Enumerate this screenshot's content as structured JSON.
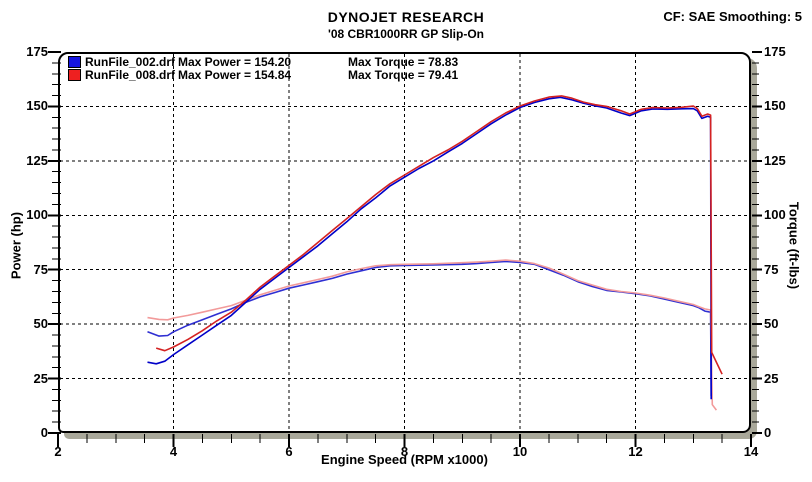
{
  "header": {
    "title": "DYNOJET RESEARCH",
    "subtitle": "'08 CBR1000RR GP Slip-On",
    "correction_info": "CF: SAE  Smoothing: 5"
  },
  "legend": {
    "rows": [
      {
        "file": "RunFile_002.drf",
        "max_power": "Max Power = 154.20",
        "max_torque": "Max Torque = 78.83",
        "swatch_color": "#1515e0"
      },
      {
        "file": "RunFile_008.drf",
        "max_power": "Max Power = 154.84",
        "max_torque": "Max Torque = 79.41",
        "swatch_color": "#ee2020"
      }
    ]
  },
  "chart_data": {
    "type": "line",
    "title": "DYNOJET RESEARCH",
    "subtitle": "'08 CBR1000RR GP Slip-On",
    "xlabel": "Engine Speed (RPM x1000)",
    "ylabel_left": "Power (hp)",
    "ylabel_right": "Torque (ft-lbs)",
    "xlim": [
      2,
      14
    ],
    "ylim": [
      0,
      175
    ],
    "x_major_ticks": [
      2,
      4,
      6,
      8,
      10,
      12,
      14
    ],
    "x_minor_step": 0.5,
    "y_major_ticks": [
      0,
      25,
      50,
      75,
      100,
      125,
      150,
      175
    ],
    "y_minor_step": 5,
    "grid": "dashed-at-major-ticks",
    "legend_position": "top-left-inside",
    "series": [
      {
        "name": "RunFile_002.drf Torque",
        "unit": "ft-lbs",
        "color": "#2f2fd2",
        "max": 78.83,
        "points": [
          [
            3.55,
            46.5
          ],
          [
            3.75,
            44.5
          ],
          [
            3.9,
            44.8
          ],
          [
            4,
            46.5
          ],
          [
            4.25,
            49.5
          ],
          [
            4.5,
            52
          ],
          [
            4.75,
            54.5
          ],
          [
            5,
            57
          ],
          [
            5.25,
            60
          ],
          [
            5.5,
            62.5
          ],
          [
            5.75,
            64.5
          ],
          [
            6,
            66.5
          ],
          [
            6.25,
            68
          ],
          [
            6.5,
            69.5
          ],
          [
            6.75,
            71
          ],
          [
            7,
            73
          ],
          [
            7.25,
            74.5
          ],
          [
            7.5,
            76
          ],
          [
            7.75,
            76.8
          ],
          [
            8,
            77
          ],
          [
            8.5,
            77.2
          ],
          [
            9,
            77.5
          ],
          [
            9.25,
            77.8
          ],
          [
            9.5,
            78.3
          ],
          [
            9.75,
            78.83
          ],
          [
            10,
            78.3
          ],
          [
            10.25,
            77.5
          ],
          [
            10.5,
            75
          ],
          [
            10.75,
            72.5
          ],
          [
            11,
            69.5
          ],
          [
            11.25,
            67.3
          ],
          [
            11.5,
            65.5
          ],
          [
            11.75,
            64.8
          ],
          [
            12,
            64
          ],
          [
            12.25,
            63
          ],
          [
            12.5,
            61.5
          ],
          [
            12.75,
            60
          ],
          [
            13,
            58.5
          ],
          [
            13.1,
            57.5
          ],
          [
            13.2,
            56
          ],
          [
            13.3,
            55.5
          ],
          [
            13.31,
            17
          ]
        ]
      },
      {
        "name": "RunFile_008.drf Torque",
        "unit": "ft-lbs",
        "color": "#f29a9a",
        "max": 79.41,
        "points": [
          [
            3.55,
            53
          ],
          [
            3.75,
            52.2
          ],
          [
            3.9,
            52
          ],
          [
            4,
            52.8
          ],
          [
            4.25,
            54
          ],
          [
            4.5,
            55.5
          ],
          [
            4.75,
            57
          ],
          [
            5,
            58.5
          ],
          [
            5.25,
            61
          ],
          [
            5.5,
            63.5
          ],
          [
            5.75,
            65.5
          ],
          [
            6,
            67.5
          ],
          [
            6.25,
            69
          ],
          [
            6.5,
            70.5
          ],
          [
            6.75,
            72
          ],
          [
            7,
            74
          ],
          [
            7.25,
            75.5
          ],
          [
            7.5,
            76.8
          ],
          [
            7.75,
            77.3
          ],
          [
            8,
            77.5
          ],
          [
            8.5,
            77.7
          ],
          [
            9,
            78.2
          ],
          [
            9.25,
            78.5
          ],
          [
            9.5,
            78.9
          ],
          [
            9.75,
            79.41
          ],
          [
            10,
            78.9
          ],
          [
            10.25,
            77.8
          ],
          [
            10.5,
            75.8
          ],
          [
            10.75,
            73
          ],
          [
            11,
            70
          ],
          [
            11.25,
            68
          ],
          [
            11.5,
            66
          ],
          [
            11.75,
            65
          ],
          [
            12,
            64.3
          ],
          [
            12.25,
            63.3
          ],
          [
            12.5,
            62
          ],
          [
            12.75,
            60.5
          ],
          [
            13,
            59
          ],
          [
            13.1,
            58
          ],
          [
            13.2,
            57
          ],
          [
            13.3,
            56.5
          ],
          [
            13.33,
            13
          ],
          [
            13.4,
            10.5
          ]
        ]
      },
      {
        "name": "RunFile_002.drf Power",
        "unit": "hp",
        "color": "#0000c8",
        "max": 154.2,
        "points": [
          [
            3.55,
            32.5
          ],
          [
            3.7,
            31.8
          ],
          [
            3.85,
            33
          ],
          [
            4,
            36
          ],
          [
            4.25,
            40.5
          ],
          [
            4.5,
            45
          ],
          [
            4.75,
            49.5
          ],
          [
            5,
            54
          ],
          [
            5.25,
            60
          ],
          [
            5.5,
            66
          ],
          [
            5.75,
            71
          ],
          [
            6,
            76
          ],
          [
            6.25,
            81
          ],
          [
            6.5,
            86
          ],
          [
            6.75,
            91.5
          ],
          [
            7,
            97
          ],
          [
            7.25,
            103
          ],
          [
            7.5,
            108
          ],
          [
            7.75,
            113.5
          ],
          [
            8,
            117.5
          ],
          [
            8.25,
            121.5
          ],
          [
            8.5,
            125
          ],
          [
            8.75,
            129
          ],
          [
            9,
            133
          ],
          [
            9.25,
            137.5
          ],
          [
            9.5,
            142
          ],
          [
            9.75,
            146
          ],
          [
            10,
            149.5
          ],
          [
            10.25,
            151.8
          ],
          [
            10.5,
            153.5
          ],
          [
            10.7,
            154.2
          ],
          [
            10.9,
            153
          ],
          [
            11.1,
            151.5
          ],
          [
            11.3,
            150.3
          ],
          [
            11.5,
            149.3
          ],
          [
            11.75,
            147
          ],
          [
            11.9,
            145.8
          ],
          [
            12.1,
            148
          ],
          [
            12.3,
            148.8
          ],
          [
            12.55,
            148.7
          ],
          [
            12.8,
            148.9
          ],
          [
            13,
            149
          ],
          [
            13.07,
            148
          ],
          [
            13.15,
            144.5
          ],
          [
            13.25,
            145.5
          ],
          [
            13.3,
            145
          ],
          [
            13.31,
            15.5
          ]
        ]
      },
      {
        "name": "RunFile_008.drf Power",
        "unit": "hp",
        "color": "#d42222",
        "max": 154.84,
        "points": [
          [
            3.7,
            39
          ],
          [
            3.85,
            37.8
          ],
          [
            4,
            39.5
          ],
          [
            4.25,
            43
          ],
          [
            4.5,
            47
          ],
          [
            4.75,
            51.5
          ],
          [
            5,
            55.5
          ],
          [
            5.25,
            61
          ],
          [
            5.5,
            67
          ],
          [
            5.75,
            72
          ],
          [
            6,
            77
          ],
          [
            6.25,
            82
          ],
          [
            6.5,
            87.5
          ],
          [
            6.75,
            93
          ],
          [
            7,
            98.5
          ],
          [
            7.25,
            104
          ],
          [
            7.5,
            109.5
          ],
          [
            7.75,
            114.5
          ],
          [
            8,
            118.5
          ],
          [
            8.25,
            122.5
          ],
          [
            8.5,
            126.5
          ],
          [
            8.75,
            130
          ],
          [
            9,
            134
          ],
          [
            9.25,
            138.5
          ],
          [
            9.5,
            143
          ],
          [
            9.75,
            147
          ],
          [
            10,
            150.2
          ],
          [
            10.25,
            152.5
          ],
          [
            10.5,
            154.3
          ],
          [
            10.72,
            154.84
          ],
          [
            10.9,
            153.8
          ],
          [
            11.1,
            152
          ],
          [
            11.3,
            150.8
          ],
          [
            11.5,
            150
          ],
          [
            11.75,
            148
          ],
          [
            11.9,
            146.5
          ],
          [
            12.1,
            148.7
          ],
          [
            12.3,
            149.5
          ],
          [
            12.55,
            149.3
          ],
          [
            12.8,
            149.6
          ],
          [
            13,
            150.2
          ],
          [
            13.07,
            149
          ],
          [
            13.15,
            145.5
          ],
          [
            13.25,
            146.5
          ],
          [
            13.3,
            146
          ],
          [
            13.32,
            37
          ],
          [
            13.5,
            27
          ]
        ]
      }
    ]
  }
}
